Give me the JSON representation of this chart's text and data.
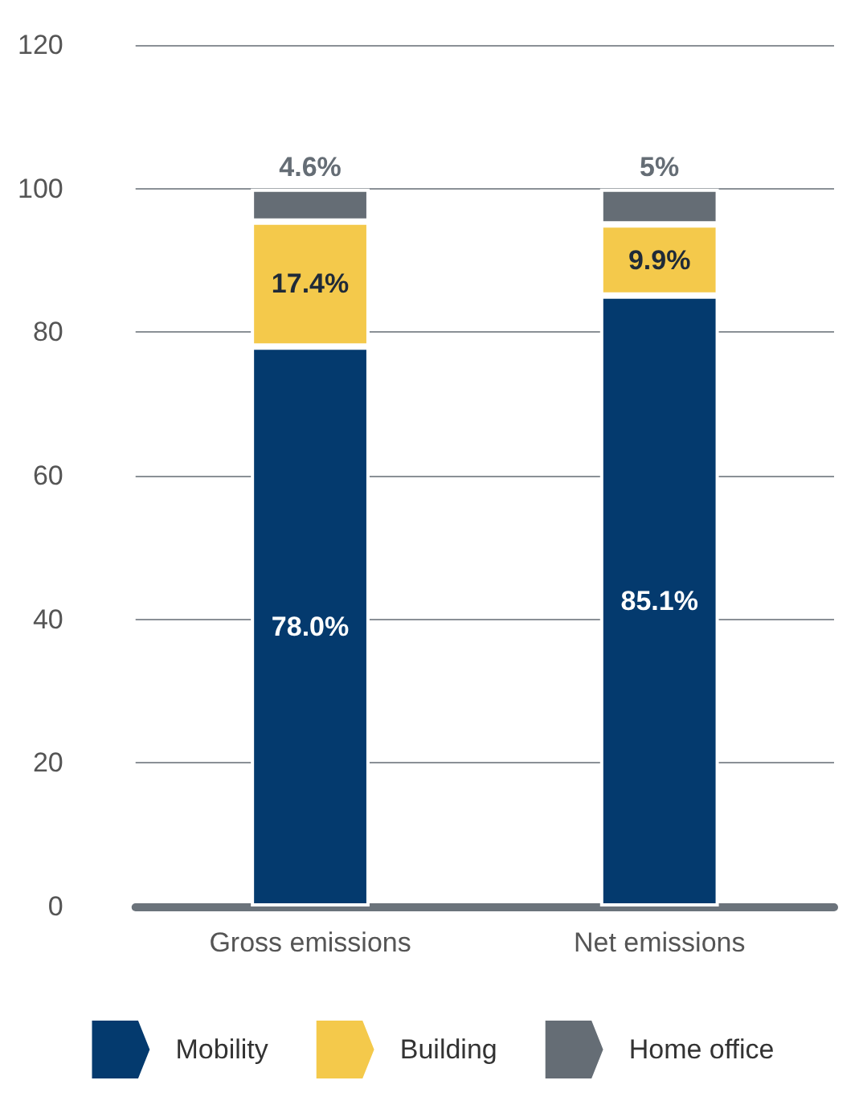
{
  "chart_data": {
    "type": "bar",
    "stacked": true,
    "categories": [
      "Gross emissions",
      "Net emissions"
    ],
    "series": [
      {
        "name": "Mobility",
        "color": "#043a6e",
        "values": [
          78.0,
          85.1
        ],
        "value_labels": [
          "78.0%",
          "85.1%"
        ]
      },
      {
        "name": "Building",
        "color": "#f4c94b",
        "values": [
          17.4,
          9.9
        ],
        "value_labels": [
          "17.4%",
          "9.9%"
        ]
      },
      {
        "name": "Home office",
        "color": "#656d75",
        "values": [
          4.6,
          5
        ],
        "value_labels": [
          "4.6%",
          "5%"
        ]
      }
    ],
    "ylim": [
      0,
      120
    ],
    "yticks": [
      0,
      20,
      40,
      60,
      80,
      100,
      120
    ],
    "grid": "y",
    "legend": "bottom"
  }
}
